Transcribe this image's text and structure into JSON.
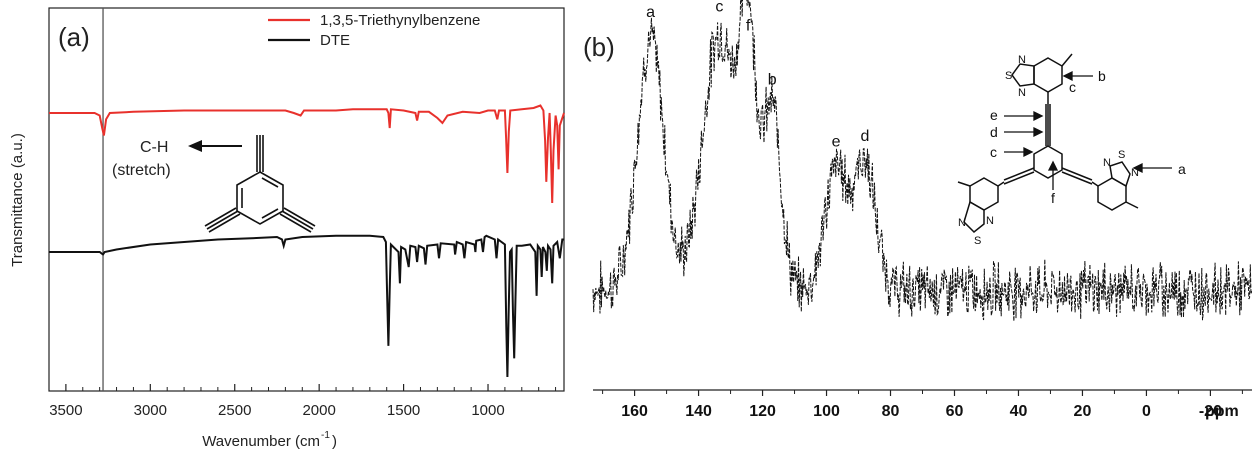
{
  "chart_data": [
    {
      "type": "line",
      "panel_label": "(a)",
      "xlabel": "Wavenumber (cm",
      "xlabel_sup": "-1",
      "xlabel_close": ")",
      "ylabel": "Transmittance (a.u.)",
      "xlim": [
        3600,
        550
      ],
      "x_reversed": true,
      "xticks": [
        3500,
        3000,
        2500,
        2000,
        1500,
        1000
      ],
      "reference_line_x": 3280,
      "legend_position": "top-right",
      "colors": {
        "red": "#e8312c",
        "black": "#111111"
      },
      "series": [
        {
          "name": "1,3,5-Triethynylbenzene",
          "color": "#e8312c",
          "offset": 1.0,
          "points": [
            [
              3600,
              0.0
            ],
            [
              3330,
              0.0
            ],
            [
              3300,
              -0.02
            ],
            [
              3285,
              -0.12
            ],
            [
              3275,
              -0.18
            ],
            [
              3262,
              -0.05
            ],
            [
              3240,
              0.0
            ],
            [
              3100,
              0.01
            ],
            [
              2800,
              0.02
            ],
            [
              2500,
              0.02
            ],
            [
              2200,
              0.02
            ],
            [
              2150,
              0.0
            ],
            [
              2110,
              -0.02
            ],
            [
              2090,
              0.02
            ],
            [
              1900,
              0.02
            ],
            [
              1800,
              0.03
            ],
            [
              1600,
              0.03
            ],
            [
              1590,
              0.0
            ],
            [
              1582,
              -0.12
            ],
            [
              1575,
              0.03
            ],
            [
              1500,
              0.02
            ],
            [
              1430,
              0.0
            ],
            [
              1420,
              -0.06
            ],
            [
              1410,
              0.01
            ],
            [
              1350,
              0.01
            ],
            [
              1300,
              -0.04
            ],
            [
              1270,
              -0.08
            ],
            [
              1240,
              -0.02
            ],
            [
              1150,
              0.01
            ],
            [
              1050,
              0.0
            ],
            [
              1000,
              0.02
            ],
            [
              960,
              0.02
            ],
            [
              945,
              -0.05
            ],
            [
              935,
              0.02
            ],
            [
              900,
              0.02
            ],
            [
              893,
              -0.2
            ],
            [
              885,
              -0.48
            ],
            [
              877,
              -0.15
            ],
            [
              868,
              0.02
            ],
            [
              800,
              0.03
            ],
            [
              730,
              0.04
            ],
            [
              690,
              0.06
            ],
            [
              672,
              0.02
            ],
            [
              662,
              -0.22
            ],
            [
              655,
              -0.55
            ],
            [
              645,
              -0.2
            ],
            [
              635,
              0.0
            ],
            [
              628,
              -0.3
            ],
            [
              620,
              -0.72
            ],
            [
              612,
              -0.3
            ],
            [
              600,
              -0.02
            ],
            [
              590,
              -0.1
            ],
            [
              582,
              -0.45
            ],
            [
              575,
              -0.1
            ],
            [
              550,
              0.0
            ]
          ]
        },
        {
          "name": "DTE",
          "color": "#111111",
          "offset": 0.0,
          "points": [
            [
              3600,
              0.0
            ],
            [
              3300,
              0.0
            ],
            [
              3280,
              -0.02
            ],
            [
              3270,
              0.0
            ],
            [
              3200,
              0.02
            ],
            [
              3000,
              0.06
            ],
            [
              2800,
              0.08
            ],
            [
              2600,
              0.1
            ],
            [
              2400,
              0.11
            ],
            [
              2250,
              0.12
            ],
            [
              2220,
              0.1
            ],
            [
              2210,
              0.05
            ],
            [
              2200,
              0.1
            ],
            [
              2100,
              0.12
            ],
            [
              1900,
              0.13
            ],
            [
              1700,
              0.13
            ],
            [
              1620,
              0.12
            ],
            [
              1605,
              0.08
            ],
            [
              1598,
              -0.3
            ],
            [
              1590,
              -0.75
            ],
            [
              1582,
              -0.3
            ],
            [
              1575,
              0.06
            ],
            [
              1530,
              0.0
            ],
            [
              1522,
              -0.25
            ],
            [
              1515,
              0.04
            ],
            [
              1490,
              0.02
            ],
            [
              1470,
              -0.12
            ],
            [
              1460,
              0.05
            ],
            [
              1430,
              0.04
            ],
            [
              1420,
              -0.08
            ],
            [
              1410,
              0.05
            ],
            [
              1380,
              0.03
            ],
            [
              1370,
              -0.1
            ],
            [
              1360,
              0.05
            ],
            [
              1300,
              0.06
            ],
            [
              1290,
              -0.05
            ],
            [
              1280,
              0.07
            ],
            [
              1200,
              0.06
            ],
            [
              1195,
              -0.02
            ],
            [
              1185,
              0.08
            ],
            [
              1150,
              0.06
            ],
            [
              1140,
              -0.05
            ],
            [
              1130,
              0.08
            ],
            [
              1080,
              0.06
            ],
            [
              1075,
              0.0
            ],
            [
              1070,
              0.09
            ],
            [
              1040,
              0.1
            ],
            [
              1030,
              0.0
            ],
            [
              1020,
              0.12
            ],
            [
              1010,
              0.13
            ],
            [
              960,
              0.1
            ],
            [
              950,
              -0.05
            ],
            [
              940,
              0.1
            ],
            [
              900,
              0.06
            ],
            [
              892,
              -0.6
            ],
            [
              885,
              -1.0
            ],
            [
              878,
              -0.5
            ],
            [
              870,
              0.0
            ],
            [
              860,
              0.02
            ],
            [
              852,
              -0.5
            ],
            [
              845,
              -0.85
            ],
            [
              838,
              -0.4
            ],
            [
              830,
              0.05
            ],
            [
              800,
              0.05
            ],
            [
              750,
              0.06
            ],
            [
              720,
              0.0
            ],
            [
              712,
              -0.35
            ],
            [
              705,
              0.05
            ],
            [
              690,
              0.02
            ],
            [
              682,
              -0.2
            ],
            [
              675,
              0.04
            ],
            [
              660,
              0.0
            ],
            [
              652,
              -0.15
            ],
            [
              645,
              0.05
            ],
            [
              630,
              0.02
            ],
            [
              620,
              -0.25
            ],
            [
              612,
              0.05
            ],
            [
              590,
              0.08
            ],
            [
              575,
              -0.05
            ],
            [
              560,
              0.1
            ],
            [
              550,
              0.1
            ]
          ]
        }
      ],
      "annotations": {
        "ch_line1": "C-H",
        "ch_line2": "(stretch)"
      }
    },
    {
      "type": "line",
      "panel_label": "(b)",
      "xlabel": "ppm",
      "xlim": [
        173,
        -33
      ],
      "x_reversed": true,
      "xticks": [
        160,
        140,
        120,
        100,
        80,
        60,
        40,
        20,
        0,
        -20
      ],
      "tick_labels": [
        "160",
        "140",
        "120",
        "100",
        "80",
        "60",
        "40",
        "20",
        "0",
        "-20"
      ],
      "peaks": [
        {
          "label": "a",
          "ppm": 155,
          "height": 0.93
        },
        {
          "label": "c",
          "ppm": 133.5,
          "height": 0.95
        },
        {
          "label": "f",
          "ppm": 124.5,
          "height": 0.88
        },
        {
          "label": "b",
          "ppm": 117,
          "height": 0.68
        },
        {
          "label": "e",
          "ppm": 97,
          "height": 0.45
        },
        {
          "label": "d",
          "ppm": 88,
          "height": 0.47
        }
      ],
      "noise_level": 0.08,
      "structure_labels": {
        "a": "a",
        "b": "b",
        "c": "c",
        "c_ring": "c",
        "d": "d",
        "e": "e",
        "f": "f",
        "n": "N",
        "s": "S"
      }
    }
  ]
}
